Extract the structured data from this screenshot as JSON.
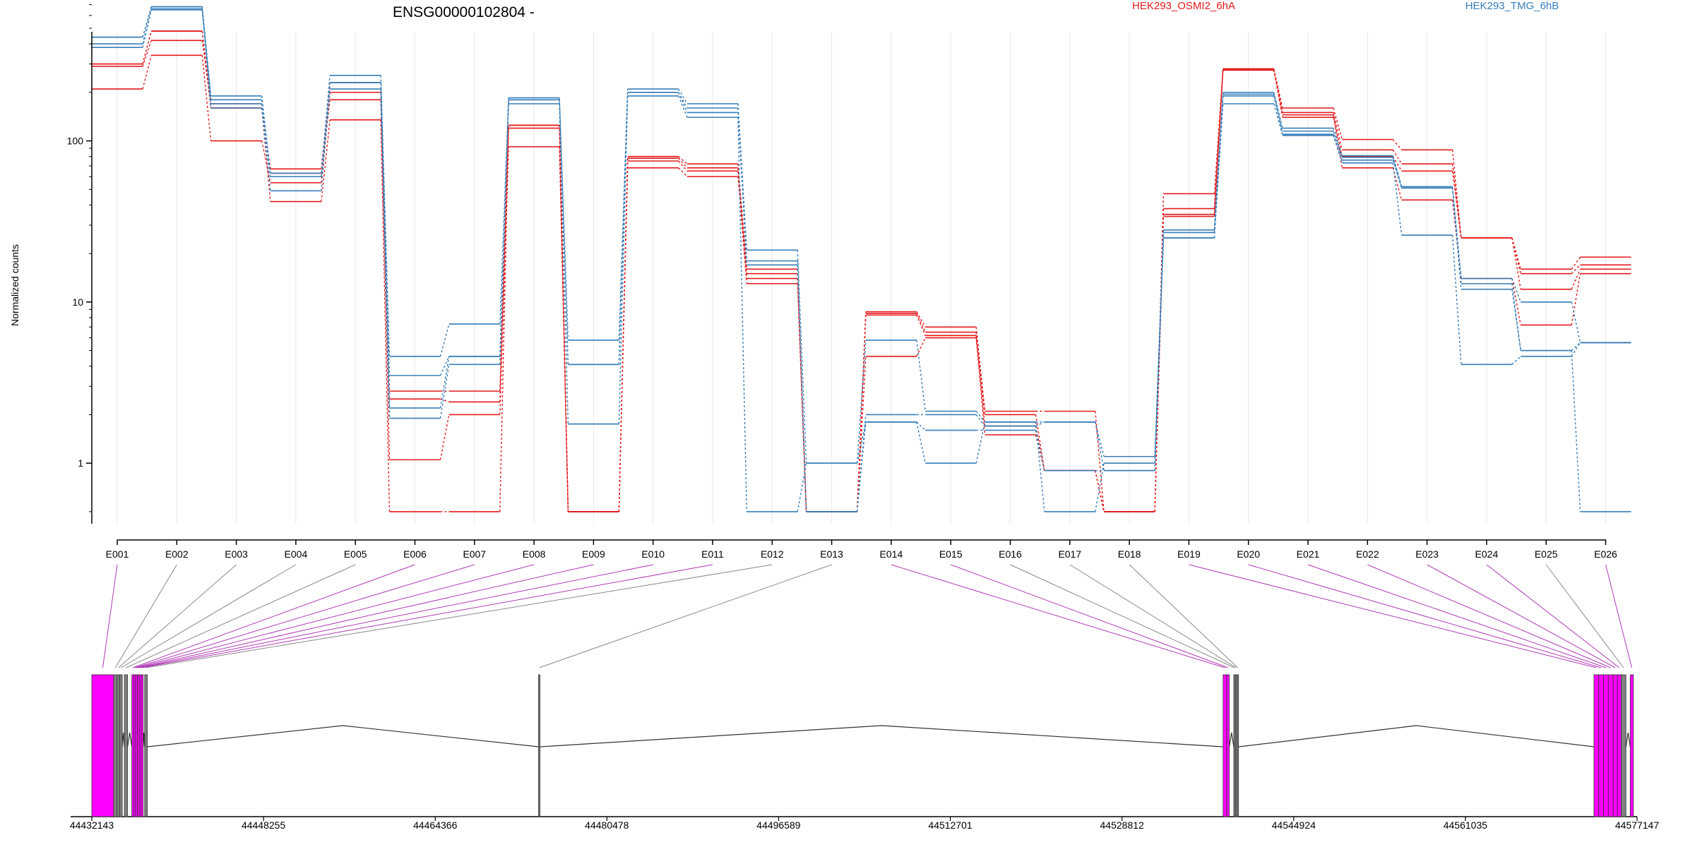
{
  "chart_data": {
    "type": "line",
    "title": "ENSG00000102804 -",
    "xlabel": "",
    "ylabel": "Normalized counts",
    "y_scale": "log",
    "ylim": [
      0.5,
      1000
    ],
    "y_ticks": [
      1,
      10,
      100
    ],
    "y_tick_labels": [
      "1",
      "10",
      "100"
    ],
    "grid": "vertical gridlines per exon",
    "legend_placement": "top",
    "categories": [
      "E001",
      "E002",
      "E003",
      "E004",
      "E005",
      "E006",
      "E007",
      "E008",
      "E009",
      "E010",
      "E011",
      "E012",
      "E013",
      "E014",
      "E015",
      "E016",
      "E017",
      "E018",
      "E019",
      "E020",
      "E021",
      "E022",
      "E023",
      "E024",
      "E025",
      "E026"
    ],
    "colors": {
      "HEK293_OSMI2_6hA": "#e41a1c",
      "HEK293_TMG_6hB": "#377eb8",
      "exon_highlight": "#ff00ff",
      "exon_plain": "#808080",
      "connector_highlight": "#b03ab5",
      "connector_plain": "#888888"
    },
    "series": [
      {
        "name": "HEK293_OSMI2_6hA",
        "group": "HEK293_OSMI2_6hA",
        "values": [
          300,
          480,
          160,
          67,
          230,
          2.8,
          2.8,
          125,
          0.5,
          80,
          72,
          16,
          0.5,
          8.7,
          7,
          2.1,
          2.1,
          0.5,
          47,
          280,
          160,
          102,
          88,
          25,
          16,
          19
        ]
      },
      {
        "name": "HEK293_OSMI2_6hA",
        "group": "HEK293_OSMI2_6hA",
        "values": [
          290,
          420,
          170,
          63,
          180,
          2.5,
          2.4,
          120,
          0.5,
          78,
          68,
          14,
          0.5,
          8.3,
          6.2,
          1.7,
          0.9,
          0.5,
          38,
          275,
          150,
          88,
          72,
          25,
          12,
          16
        ]
      },
      {
        "name": "HEK293_OSMI2_6hA",
        "group": "HEK293_OSMI2_6hA",
        "values": [
          210,
          340,
          100,
          55,
          200,
          1.05,
          2.0,
          92,
          0.5,
          68,
          60,
          13,
          0.5,
          4.6,
          6.0,
          1.5,
          0.9,
          0.5,
          34,
          280,
          145,
          68,
          43,
          14,
          7.2,
          15
        ]
      },
      {
        "name": "HEK293_OSMI2_6hA",
        "group": "HEK293_OSMI2_6hA",
        "values": [
          300,
          480,
          160,
          42,
          135,
          0.5,
          0.5,
          125,
          0.5,
          75,
          65,
          15,
          0.5,
          8.5,
          6.5,
          2.0,
          0.9,
          0.5,
          35,
          275,
          140,
          80,
          65,
          25,
          15,
          17
        ]
      },
      {
        "name": "HEK293_TMG_6hB",
        "group": "HEK293_TMG_6hB",
        "values": [
          440,
          680,
          190,
          63,
          255,
          4.6,
          7.3,
          185,
          5.8,
          210,
          170,
          21,
          1.0,
          5.8,
          2.1,
          1.8,
          1.8,
          1.1,
          28,
          200,
          120,
          81,
          52,
          14,
          10,
          5.6
        ]
      },
      {
        "name": "HEK293_TMG_6hB",
        "group": "HEK293_TMG_6hB",
        "values": [
          380,
          650,
          170,
          60,
          230,
          3.5,
          4.6,
          180,
          4.1,
          200,
          150,
          18,
          0.5,
          1.8,
          1.6,
          1.6,
          0.9,
          0.9,
          25,
          190,
          110,
          76,
          51,
          12,
          5,
          0.5
        ]
      },
      {
        "name": "HEK293_TMG_6hB",
        "group": "HEK293_TMG_6hB",
        "values": [
          440,
          680,
          160,
          49,
          210,
          1.9,
          4.1,
          170,
          1.75,
          190,
          140,
          0.5,
          1.0,
          1.8,
          1.0,
          1.8,
          0.5,
          1.0,
          25,
          170,
          108,
          73,
          26,
          4.1,
          4.6,
          5.6
        ]
      },
      {
        "name": "HEK293_TMG_6hB",
        "group": "HEK293_TMG_6hB",
        "values": [
          400,
          660,
          180,
          60,
          230,
          2.2,
          4.6,
          180,
          4.1,
          200,
          160,
          17,
          0.5,
          2.0,
          2.0,
          1.7,
          1.8,
          0.9,
          27,
          195,
          115,
          79,
          51,
          13,
          5,
          5.6
        ]
      }
    ],
    "genomic_axis": {
      "tick_labels": [
        "44432143",
        "44448255",
        "44464366",
        "44480478",
        "44496589",
        "44512701",
        "44528812",
        "44544924",
        "44561035",
        "44577147"
      ],
      "range": [
        44432143,
        44577147
      ]
    },
    "exons": [
      {
        "id": "E001",
        "start": 44432143,
        "end": 44434190,
        "highlight": true
      },
      {
        "id": "E002",
        "start": 44434190,
        "end": 44434520,
        "highlight": false
      },
      {
        "id": "E003",
        "start": 44434520,
        "end": 44434760,
        "highlight": false
      },
      {
        "id": "E004",
        "start": 44434760,
        "end": 44435000,
        "highlight": false
      },
      {
        "id": "E005",
        "start": 44435200,
        "end": 44435500,
        "highlight": false
      },
      {
        "id": "E006",
        "start": 44435900,
        "end": 44436080,
        "highlight": true
      },
      {
        "id": "E007",
        "start": 44436080,
        "end": 44436250,
        "highlight": true
      },
      {
        "id": "E008",
        "start": 44436250,
        "end": 44436420,
        "highlight": true
      },
      {
        "id": "E009",
        "start": 44436420,
        "end": 44436600,
        "highlight": true
      },
      {
        "id": "E010",
        "start": 44436600,
        "end": 44436780,
        "highlight": true
      },
      {
        "id": "E011",
        "start": 44436780,
        "end": 44436960,
        "highlight": true
      },
      {
        "id": "E012",
        "start": 44437100,
        "end": 44437350,
        "highlight": false
      },
      {
        "id": "E013",
        "start": 44474060,
        "end": 44474200,
        "highlight": false
      },
      {
        "id": "E014",
        "start": 44538300,
        "end": 44538650,
        "highlight": true
      },
      {
        "id": "E015",
        "start": 44538650,
        "end": 44538880,
        "highlight": true
      },
      {
        "id": "E016",
        "start": 44539300,
        "end": 44539450,
        "highlight": false
      },
      {
        "id": "E017",
        "start": 44539450,
        "end": 44539600,
        "highlight": false
      },
      {
        "id": "E018",
        "start": 44539600,
        "end": 44539750,
        "highlight": false
      },
      {
        "id": "E019",
        "start": 44573100,
        "end": 44573550,
        "highlight": true
      },
      {
        "id": "E020",
        "start": 44573550,
        "end": 44574000,
        "highlight": true
      },
      {
        "id": "E021",
        "start": 44574000,
        "end": 44574450,
        "highlight": true
      },
      {
        "id": "E022",
        "start": 44574450,
        "end": 44574900,
        "highlight": true
      },
      {
        "id": "E023",
        "start": 44574900,
        "end": 44575300,
        "highlight": true
      },
      {
        "id": "E024",
        "start": 44575300,
        "end": 44575650,
        "highlight": true
      },
      {
        "id": "E025",
        "start": 44575650,
        "end": 44576100,
        "highlight": false
      },
      {
        "id": "E026",
        "start": 44576500,
        "end": 44576800,
        "highlight": true
      }
    ]
  }
}
